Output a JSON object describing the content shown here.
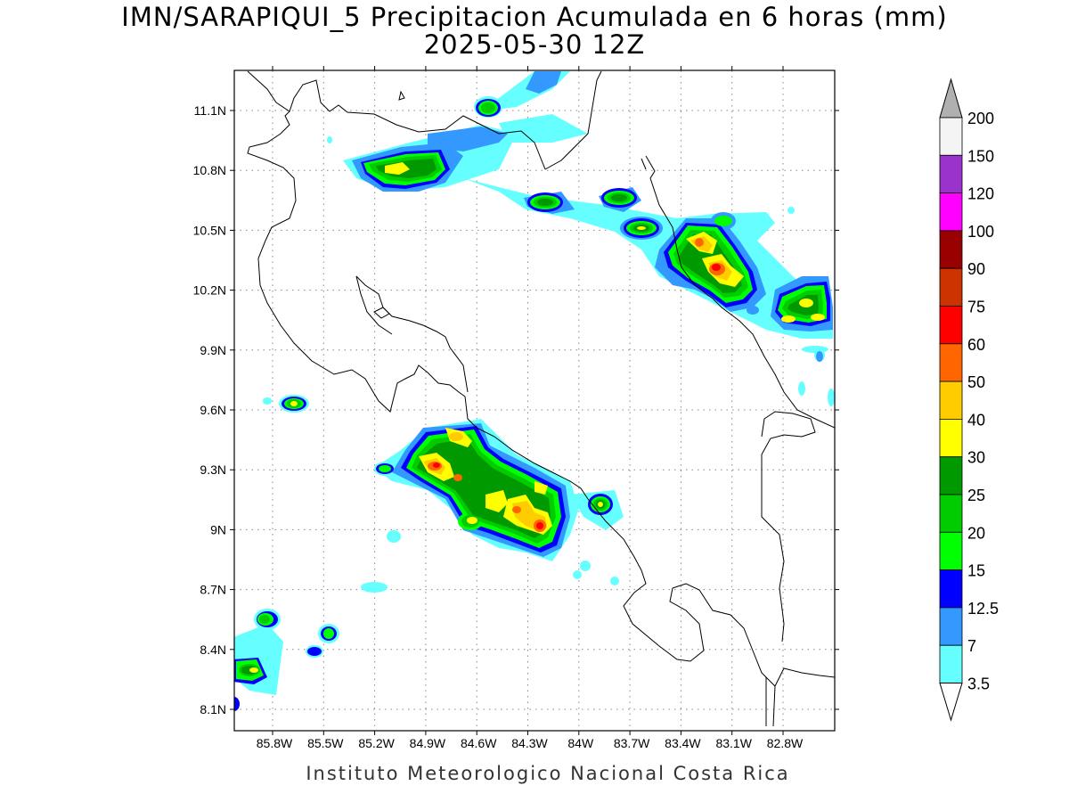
{
  "title": {
    "line1": "IMN/SARAPIQUI_5 Precipitacion Acumulada en 6 horas (mm)",
    "line2": "2025-05-30 12Z"
  },
  "footer": "Instituto Meteorologico Nacional Costa Rica",
  "map": {
    "lon_range": [
      -86.0,
      -82.6
    ],
    "lat_range": [
      8.0,
      11.3
    ],
    "lat_ticks": [
      "11.1N",
      "10.8N",
      "10.5N",
      "10.2N",
      "9.9N",
      "9.6N",
      "9.3N",
      "9N",
      "8.7N",
      "8.4N",
      "8.1N"
    ],
    "lon_ticks": [
      "85.8W",
      "85.5W",
      "85.2W",
      "84.9W",
      "84.6W",
      "84.3W",
      "84W",
      "83.7W",
      "83.4W",
      "83.1W",
      "82.8W"
    ],
    "grid": "dotted"
  },
  "colorbar": {
    "levels": [
      "200",
      "150",
      "120",
      "100",
      "90",
      "75",
      "60",
      "50",
      "40",
      "30",
      "25",
      "20",
      "15",
      "12.5",
      "7",
      "3.5"
    ],
    "colors": [
      "#b0b0b0",
      "#f4f4f4",
      "#9933cc",
      "#ff00ff",
      "#990000",
      "#cc3300",
      "#ff0000",
      "#ff6600",
      "#ffcc00",
      "#ffff00",
      "#009900",
      "#00cc00",
      "#00ff00",
      "#0000ff",
      "#3399ff",
      "#66ffff",
      "#ffffff"
    ]
  }
}
